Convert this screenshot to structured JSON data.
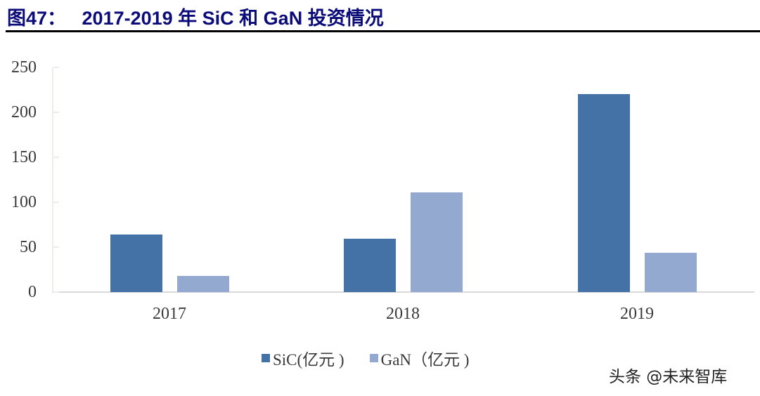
{
  "header": {
    "title": "图47：   2017-2019 年 SiC 和 GaN 投资情况"
  },
  "colors": {
    "sic": "#4472a6",
    "gan": "#94a9cf",
    "title": "#0b0b7a",
    "axis": "#efeee6",
    "baseline": "#d9d9d9"
  },
  "axis": {
    "y_ticks": [
      "250",
      "200",
      "150",
      "100",
      "50",
      "0"
    ]
  },
  "legend": {
    "items": [
      {
        "label": "SiC(亿元 )",
        "color": "#4472a6"
      },
      {
        "label": "GaN（亿元 )",
        "color": "#94a9cf"
      }
    ]
  },
  "watermark": "头条 @未来智库",
  "chart_data": {
    "type": "bar",
    "title": "2017-2019 年 SiC 和 GaN 投资情况",
    "figure_label": "图47",
    "categories": [
      "2017",
      "2018",
      "2019"
    ],
    "series": [
      {
        "name": "SiC(亿元)",
        "values": [
          64,
          59,
          220
        ],
        "color": "#4472a6"
      },
      {
        "name": "GaN（亿元）",
        "values": [
          18,
          111,
          44
        ],
        "color": "#94a9cf"
      }
    ],
    "xlabel": "",
    "ylabel": "",
    "ylim": [
      0,
      250
    ],
    "yticks": [
      0,
      50,
      100,
      150,
      200,
      250
    ],
    "grid": false,
    "legend_position": "bottom"
  }
}
